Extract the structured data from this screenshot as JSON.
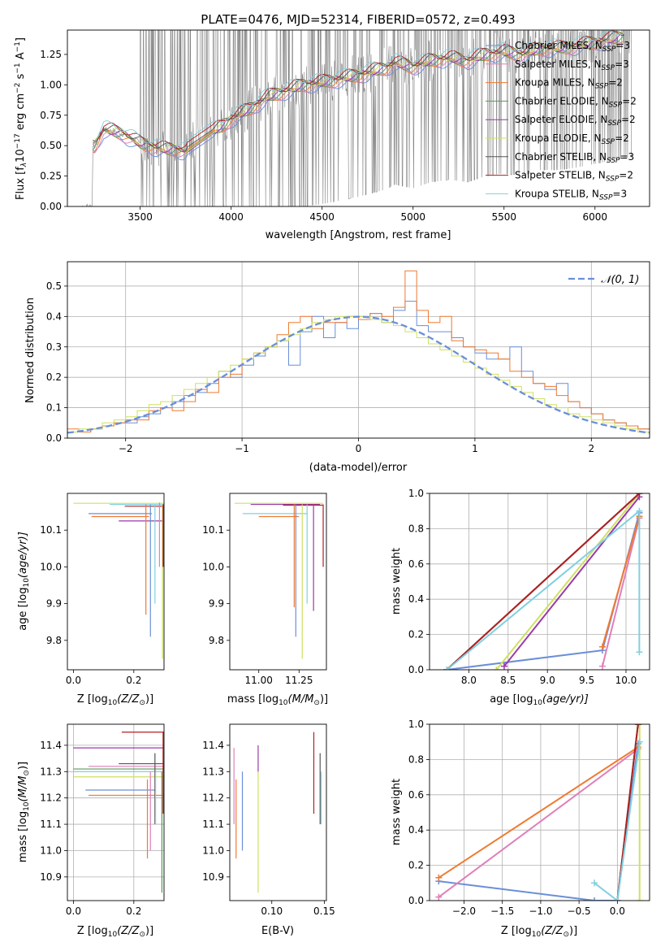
{
  "figure": {
    "title": "PLATE=0476, MJD=52314, FIBERID=0572, z=0.493"
  },
  "chart_data": [
    {
      "id": "spectrum",
      "type": "line",
      "xlabel": "wavelength [Angstrom, rest frame]",
      "ylabel": "Flux [f",
      "ylabel_sub": "λ",
      "ylabel_rest": "10",
      "ylabel_exp": "−17",
      "ylabel_units": " erg cm",
      "ylabel_exp2": "−2",
      "ylabel_s": " s",
      "ylabel_exp3": "−1",
      "ylabel_A": " A",
      "ylabel_exp4": "−1",
      "ylabel_end": "]",
      "xlim": [
        3100,
        6300
      ],
      "ylim": [
        0.0,
        1.45
      ],
      "xticks": [
        3500,
        4000,
        4500,
        5000,
        5500,
        6000
      ],
      "yticks": [
        0.0,
        0.25,
        0.5,
        0.75,
        1.0,
        1.25
      ],
      "ytick_labels": [
        "0.00",
        "0.25",
        "0.50",
        "0.75",
        "1.00",
        "1.25"
      ],
      "legend_placement": "right",
      "legend": [
        {
          "label": "Chabrier MILES, N",
          "sub": "SSP",
          "tail": "=3",
          "color": "#6a8fd8"
        },
        {
          "label": "Salpeter MILES, N",
          "sub": "SSP",
          "tail": "=3",
          "color": "#e07fb8"
        },
        {
          "label": "Kroupa MILES, N",
          "sub": "SSP",
          "tail": "=2",
          "color": "#f07a30"
        },
        {
          "label": "Chabrier ELODIE, N",
          "sub": "SSP",
          "tail": "=2",
          "color": "#5a9a5a"
        },
        {
          "label": "Salpeter ELODIE, N",
          "sub": "SSP",
          "tail": "=2",
          "color": "#9a3aa8"
        },
        {
          "label": "Kroupa ELODIE, N",
          "sub": "SSP",
          "tail": "=2",
          "color": "#cfe060"
        },
        {
          "label": "Chabrier STELIB, N",
          "sub": "SSP",
          "tail": "=3",
          "color": "#555555"
        },
        {
          "label": "Salpeter STELIB, N",
          "sub": "SSP",
          "tail": "=2",
          "color": "#b02020"
        },
        {
          "label": "Kroupa STELIB, N",
          "sub": "SSP",
          "tail": "=3",
          "color": "#80d0e0"
        }
      ],
      "data_color": "#808080",
      "model_curve": {
        "x": [
          3250,
          3300,
          3350,
          3400,
          3450,
          3500,
          3550,
          3600,
          3650,
          3700,
          3750,
          3800,
          3850,
          3900,
          3950,
          4000,
          4100,
          4200,
          4300,
          4400,
          4500,
          4600,
          4700,
          4800,
          4850,
          4900,
          5000,
          5100,
          5200,
          5300,
          5400,
          5500,
          5600,
          5700,
          5800,
          5900,
          6000,
          6100,
          6160
        ],
        "y": [
          0.5,
          0.63,
          0.62,
          0.6,
          0.56,
          0.52,
          0.5,
          0.48,
          0.47,
          0.47,
          0.45,
          0.55,
          0.6,
          0.62,
          0.66,
          0.72,
          0.8,
          0.9,
          0.95,
          1.0,
          1.02,
          1.05,
          1.08,
          1.12,
          1.14,
          1.18,
          1.15,
          1.2,
          1.22,
          1.2,
          1.25,
          1.27,
          1.25,
          1.3,
          1.3,
          1.32,
          1.35,
          1.38,
          1.4
        ]
      }
    },
    {
      "id": "residuals",
      "type": "histogram",
      "xlabel": "(data-model)/error",
      "ylabel": "Normed distribution",
      "xlim": [
        -2.5,
        2.5
      ],
      "ylim": [
        0.0,
        0.58
      ],
      "xticks": [
        -2,
        -1,
        0,
        1,
        2
      ],
      "xtick_labels": [
        "−2",
        "−1",
        "0",
        "1",
        "2"
      ],
      "yticks": [
        0.0,
        0.1,
        0.2,
        0.3,
        0.4,
        0.5
      ],
      "ytick_labels": [
        "0.0",
        "0.1",
        "0.2",
        "0.3",
        "0.4",
        "0.5"
      ],
      "legend_label": "𝒩(0, 1)",
      "legend_placement": "top-right",
      "normal_color": "#6a8fd8",
      "bins": [
        -2.5,
        -2.4,
        -2.3,
        -2.2,
        -2.1,
        -2.0,
        -1.9,
        -1.8,
        -1.7,
        -1.6,
        -1.5,
        -1.4,
        -1.3,
        -1.2,
        -1.1,
        -1.0,
        -0.9,
        -0.8,
        -0.7,
        -0.6,
        -0.5,
        -0.4,
        -0.3,
        -0.2,
        -0.1,
        0.0,
        0.1,
        0.2,
        0.3,
        0.4,
        0.5,
        0.6,
        0.7,
        0.8,
        0.9,
        1.0,
        1.1,
        1.2,
        1.3,
        1.4,
        1.5,
        1.6,
        1.7,
        1.8,
        1.9,
        2.0,
        2.1,
        2.2,
        2.3,
        2.4,
        2.5
      ],
      "series": [
        {
          "name": "Chabrier MILES",
          "color": "#6a8fd8",
          "values": [
            0.02,
            0.02,
            0.03,
            0.04,
            0.05,
            0.05,
            0.07,
            0.08,
            0.1,
            0.12,
            0.14,
            0.15,
            0.18,
            0.22,
            0.2,
            0.24,
            0.27,
            0.3,
            0.32,
            0.24,
            0.35,
            0.4,
            0.33,
            0.38,
            0.36,
            0.4,
            0.41,
            0.38,
            0.42,
            0.45,
            0.37,
            0.35,
            0.35,
            0.33,
            0.3,
            0.28,
            0.26,
            0.26,
            0.3,
            0.22,
            0.18,
            0.16,
            0.18,
            0.12,
            0.1,
            0.08,
            0.06,
            0.05,
            0.04,
            0.03
          ]
        },
        {
          "name": "Kroupa MILES",
          "color": "#f07a30",
          "values": [
            0.03,
            0.02,
            0.03,
            0.04,
            0.05,
            0.06,
            0.06,
            0.09,
            0.1,
            0.09,
            0.12,
            0.16,
            0.15,
            0.2,
            0.21,
            0.26,
            0.28,
            0.3,
            0.34,
            0.38,
            0.4,
            0.36,
            0.38,
            0.38,
            0.4,
            0.39,
            0.41,
            0.4,
            0.43,
            0.55,
            0.42,
            0.38,
            0.4,
            0.32,
            0.3,
            0.29,
            0.28,
            0.26,
            0.22,
            0.2,
            0.18,
            0.17,
            0.14,
            0.12,
            0.1,
            0.08,
            0.06,
            0.05,
            0.04,
            0.03
          ]
        },
        {
          "name": "Kroupa ELODIE",
          "color": "#cfe060",
          "values": [
            0.02,
            0.03,
            0.03,
            0.05,
            0.06,
            0.07,
            0.09,
            0.11,
            0.12,
            0.14,
            0.16,
            0.18,
            0.2,
            0.22,
            0.24,
            0.26,
            0.28,
            0.3,
            0.32,
            0.34,
            0.36,
            0.38,
            0.39,
            0.4,
            0.4,
            0.4,
            0.39,
            0.38,
            0.37,
            0.35,
            0.33,
            0.31,
            0.29,
            0.27,
            0.25,
            0.23,
            0.21,
            0.19,
            0.17,
            0.15,
            0.13,
            0.11,
            0.1,
            0.08,
            0.07,
            0.06,
            0.05,
            0.04,
            0.03,
            0.02
          ]
        }
      ]
    },
    {
      "id": "age-vs-Z",
      "type": "scatter",
      "xlabel": "Z [log",
      "xlabel_sub": "10",
      "xlabel_rest": "(Z/Z",
      "xlabel_odot": "⊙",
      "xlabel_end": ")]",
      "ylabel": "age  [log",
      "ylabel_sub": "10",
      "ylabel_rest": "(age/yr)]",
      "xlim": [
        -0.02,
        0.3
      ],
      "ylim": [
        9.72,
        10.2
      ],
      "xticks": [
        0.0,
        0.2
      ],
      "xtick_labels": [
        "0.0",
        "0.2"
      ],
      "yticks": [
        9.8,
        9.9,
        10.0,
        10.1
      ],
      "ytick_labels": [
        "9.8",
        "9.9",
        "10.0",
        "10.1"
      ],
      "points": [
        {
          "x": 0.05,
          "y": 10.14,
          "color": "#6a8fd8",
          "age_low": 9.81
        },
        {
          "x": 0.06,
          "y": 10.137,
          "color": "#f07a30",
          "age_low": 9.87
        },
        {
          "x": 0.0,
          "y": 10.17,
          "color": "#cfe060",
          "age_low": 9.75
        },
        {
          "x": 0.18,
          "y": 10.17,
          "color": "#b02020",
          "age_low": 9.99
        },
        {
          "x": 0.12,
          "y": 10.173,
          "color": "#80d0e0",
          "age_low": 9.9
        }
      ]
    },
    {
      "id": "age-vs-mass",
      "type": "scatter",
      "xlabel": "mass [log",
      "xlabel_sub": "10",
      "xlabel_rest": "(M/M",
      "xlabel_odot": "⊙",
      "xlabel_end": ")]",
      "xlim": [
        10.82,
        11.42
      ],
      "ylim": [
        9.72,
        10.2
      ],
      "xticks": [
        11.0,
        11.25
      ],
      "xtick_labels": [
        "11.00",
        "11.25"
      ],
      "yticks": [
        9.8,
        9.9,
        10.0,
        10.1
      ],
      "ytick_labels": [
        "9.8",
        "9.9",
        "10.0",
        "10.1"
      ]
    },
    {
      "id": "weight-vs-age",
      "type": "line",
      "xlabel": "age  [log",
      "xlabel_sub": "10",
      "xlabel_rest": "(age/yr)]",
      "ylabel": "mass weight",
      "xlim": [
        7.5,
        10.3
      ],
      "ylim": [
        0.0,
        1.0
      ],
      "xticks": [
        8.0,
        8.5,
        9.0,
        9.5,
        10.0
      ],
      "xtick_labels": [
        "8.0",
        "8.5",
        "9.0",
        "9.5",
        "10.0"
      ],
      "yticks": [
        0.0,
        0.2,
        0.4,
        0.6,
        0.8,
        1.0
      ],
      "ytick_labels": [
        "0.0",
        "0.2",
        "0.4",
        "0.6",
        "0.8",
        "1.0"
      ],
      "series": [
        {
          "name": "Chabrier MILES",
          "color": "#6a8fd8",
          "x": [
            7.72,
            9.7,
            10.17
          ],
          "y": [
            0.0,
            0.11,
            0.89
          ]
        },
        {
          "name": "Salpeter MILES",
          "color": "#e07fb8",
          "x": [
            9.7,
            10.17
          ],
          "y": [
            0.02,
            0.86
          ]
        },
        {
          "name": "Kroupa MILES",
          "color": "#f07a30",
          "x": [
            9.7,
            10.17
          ],
          "y": [
            0.13,
            0.87
          ]
        },
        {
          "name": "Salpeter ELODIE",
          "color": "#9a3aa8",
          "x": [
            8.45,
            10.17
          ],
          "y": [
            0.02,
            0.98
          ]
        },
        {
          "name": "Kroupa ELODIE",
          "color": "#cfe060",
          "x": [
            8.35,
            10.17
          ],
          "y": [
            0.0,
            1.0
          ]
        },
        {
          "name": "Chabrier STELIB",
          "color": "#555555",
          "x": [
            7.72,
            10.17
          ],
          "y": [
            0.0,
            1.0
          ]
        },
        {
          "name": "Salpeter STELIB",
          "color": "#b02020",
          "x": [
            7.72,
            10.17
          ],
          "y": [
            0.0,
            1.0
          ]
        },
        {
          "name": "Kroupa STELIB",
          "color": "#80d0e0",
          "x": [
            7.72,
            10.17,
            10.17
          ],
          "y": [
            0.0,
            0.9,
            0.1
          ]
        }
      ]
    },
    {
      "id": "mass-vs-Z",
      "type": "scatter",
      "xlabel": "Z [log",
      "xlabel_sub": "10",
      "xlabel_rest": "(Z/Z",
      "xlabel_odot": "⊙",
      "xlabel_end": ")]",
      "ylabel": "mass [log",
      "ylabel_sub": "10",
      "ylabel_rest": "(M/M",
      "ylabel_odot": "⊙",
      "ylabel_end": ")]",
      "xlim": [
        -0.02,
        0.3
      ],
      "ylim": [
        10.81,
        11.48
      ],
      "xticks": [
        0.0,
        0.2
      ],
      "xtick_labels": [
        "0.0",
        "0.2"
      ],
      "yticks": [
        10.9,
        11.0,
        11.1,
        11.2,
        11.3,
        11.4
      ],
      "ytick_labels": [
        "10.9",
        "11.0",
        "11.1",
        "11.2",
        "11.3",
        "11.4"
      ]
    },
    {
      "id": "mass-vs-EBV",
      "type": "scatter",
      "xlabel": "E(B-V)",
      "xlim": [
        0.06,
        0.152
      ],
      "ylim": [
        10.81,
        11.48
      ],
      "xticks": [
        0.1,
        0.15
      ],
      "xtick_labels": [
        "0.10",
        "0.15"
      ],
      "yticks": [
        10.9,
        11.0,
        11.1,
        11.2,
        11.3,
        11.4
      ],
      "ytick_labels": [
        "10.9",
        "11.0",
        "11.1",
        "11.2",
        "11.3",
        "11.4"
      ],
      "bars": [
        {
          "x": 0.064,
          "low": 11.1,
          "high": 11.39,
          "color": "#e07fb8"
        },
        {
          "x": 0.066,
          "low": 10.97,
          "high": 11.27,
          "color": "#f07a30"
        },
        {
          "x": 0.072,
          "low": 11.0,
          "high": 11.3,
          "color": "#6a8fd8"
        },
        {
          "x": 0.087,
          "low": 10.84,
          "high": 11.3,
          "color": "#cfe060"
        },
        {
          "x": 0.087,
          "low": 11.3,
          "high": 11.4,
          "color": "#9a3aa8"
        },
        {
          "x": 0.14,
          "low": 11.14,
          "high": 11.45,
          "color": "#b02020"
        },
        {
          "x": 0.146,
          "low": 11.1,
          "high": 11.37,
          "color": "#555555"
        },
        {
          "x": 0.147,
          "low": 11.1,
          "high": 11.3,
          "color": "#80d0e0"
        }
      ]
    },
    {
      "id": "weight-vs-Z",
      "type": "line",
      "xlabel": "Z [log",
      "xlabel_sub": "10",
      "xlabel_rest": "(Z/Z",
      "xlabel_odot": "⊙",
      "xlabel_end": ")]",
      "ylabel": "mass weight",
      "xlim": [
        -2.45,
        0.42
      ],
      "ylim": [
        0.0,
        1.0
      ],
      "xticks": [
        -2.0,
        -1.5,
        -1.0,
        -0.5,
        0.0
      ],
      "xtick_labels": [
        "−2.0",
        "−1.5",
        "−1.0",
        "−0.5",
        "0.0"
      ],
      "yticks": [
        0.0,
        0.2,
        0.4,
        0.6,
        0.8,
        1.0
      ],
      "ytick_labels": [
        "0.0",
        "0.2",
        "0.4",
        "0.6",
        "0.8",
        "1.0"
      ],
      "series": [
        {
          "name": "Chabrier MILES",
          "color": "#6a8fd8",
          "x": [
            -2.33,
            -0.3,
            0.0,
            0.27
          ],
          "y": [
            0.11,
            0.0,
            0.0,
            0.89
          ]
        },
        {
          "name": "Salpeter MILES",
          "color": "#e07fb8",
          "x": [
            -2.33,
            0.27
          ],
          "y": [
            0.02,
            0.86
          ]
        },
        {
          "name": "Kroupa MILES",
          "color": "#f07a30",
          "x": [
            -2.33,
            0.27
          ],
          "y": [
            0.13,
            0.87
          ]
        },
        {
          "name": "Kroupa ELODIE",
          "color": "#cfe060",
          "x": [
            0.29,
            0.29
          ],
          "y": [
            0.0,
            1.0
          ]
        },
        {
          "name": "Chabrier STELIB",
          "color": "#555555",
          "x": [
            0.0,
            0.27
          ],
          "y": [
            0.0,
            1.0
          ]
        },
        {
          "name": "Salpeter STELIB",
          "color": "#b02020",
          "x": [
            0.0,
            0.27
          ],
          "y": [
            0.0,
            1.0
          ]
        },
        {
          "name": "Kroupa STELIB",
          "color": "#80d0e0",
          "x": [
            -0.3,
            0.0,
            0.29
          ],
          "y": [
            0.1,
            0.0,
            0.9
          ]
        }
      ]
    }
  ]
}
